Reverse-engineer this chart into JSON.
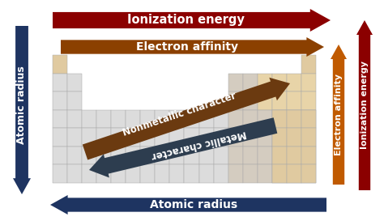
{
  "ionization_top_color": "#8B0000",
  "electron_affinity_top_color": "#8B4000",
  "atomic_radius_color": "#1e3461",
  "nonmetallic_color": "#6B3A10",
  "metallic_color": "#2d3d4f",
  "electron_affinity_right_color": "#c05a00",
  "ionization_right_color": "#8B0000",
  "metal_cell_color": "#dcdcdc",
  "nonmetal_cell_color": "#e8d4a8",
  "semi_cell_color": "#d4ccc0",
  "beige_cell_color": "#e0caa0",
  "grid_edge_color": "#aaaaaa",
  "label_ionization_top": "Ionization energy",
  "label_electron_affinity_top": "Electron affinity",
  "label_atomic_radius_left": "Atomic radius",
  "label_atomic_radius_bottom": "Atomic radius",
  "label_electron_affinity_right": "Electron affinity",
  "label_ionization_right": "Ionization energy",
  "label_nonmetallic": "Nonmetallic character",
  "label_metallic": "Metallic character"
}
